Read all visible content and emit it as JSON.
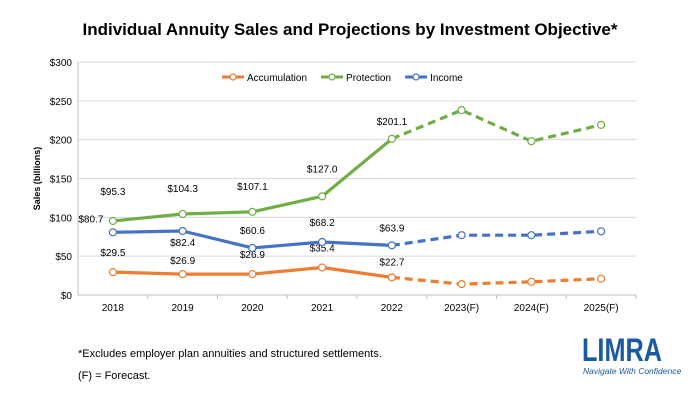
{
  "chart_data": {
    "type": "line",
    "title": "Individual Annuity Sales and Projections by Investment Objective*",
    "xlabel": "",
    "ylabel": "Sales (billions)",
    "categories": [
      "2018",
      "2019",
      "2020",
      "2021",
      "2022",
      "2023(F)",
      "2024(F)",
      "2025(F)"
    ],
    "ylim": [
      0,
      300
    ],
    "yticks": [
      "$0",
      "$50",
      "$100",
      "$150",
      "$200",
      "$250",
      "$300"
    ],
    "grid": true,
    "legend_position": "top",
    "forecast_from_index": 4,
    "series": [
      {
        "name": "Accumulation",
        "color": "#ED7D31",
        "values": [
          29.5,
          26.9,
          26.9,
          35.4,
          22.7,
          14,
          17,
          21
        ],
        "labels": [
          "$29.5",
          "$26.9",
          "$26.9",
          "$35.4",
          "$22.7",
          "",
          "",
          ""
        ]
      },
      {
        "name": "Protection",
        "color": "#70AD47",
        "values": [
          95.3,
          104.3,
          107.1,
          127.0,
          201.1,
          238,
          198,
          219
        ],
        "labels": [
          "$95.3",
          "$104.3",
          "$107.1",
          "$127.0",
          "$201.1",
          "",
          "",
          ""
        ]
      },
      {
        "name": "Income",
        "color": "#4472C4",
        "values": [
          80.7,
          82.4,
          60.6,
          68.2,
          63.9,
          77,
          77,
          82
        ],
        "labels": [
          "$80.7",
          "$82.4",
          "$60.6",
          "$68.2",
          "$63.9",
          "",
          "",
          ""
        ]
      }
    ]
  },
  "footnotes": {
    "note": "*Excludes employer plan annuities and structured settlements.",
    "forecast": "(F) = Forecast."
  },
  "logo": {
    "text": "LIMRA",
    "tagline": "Navigate With Confidence",
    "color": "#1a5aa0"
  }
}
